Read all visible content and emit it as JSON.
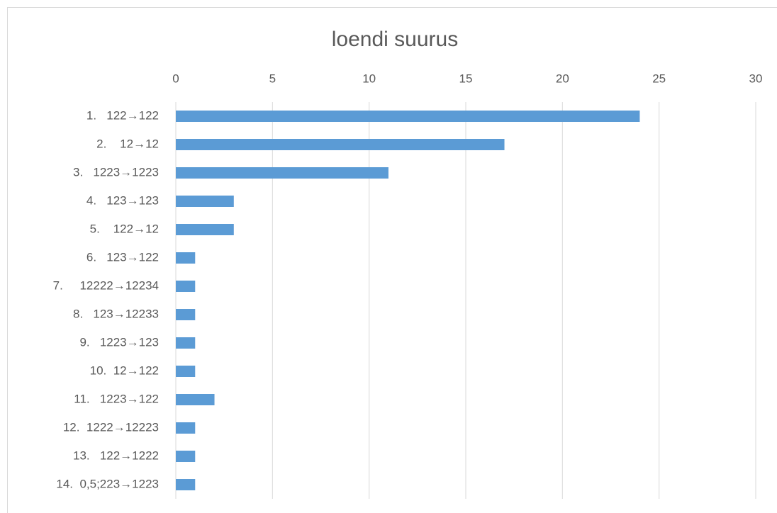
{
  "chart_data": {
    "type": "bar",
    "orientation": "horizontal",
    "title": "loendi suurus",
    "categories": [
      "1.   122→122",
      "2.    12→12",
      "3.   1223→1223",
      "4.   123→123",
      "5.    122→12",
      "6.   123→122",
      "7.     12222→12234",
      "8.   123→12233",
      "9.   1223→123",
      "10.  12→122",
      "11.   1223→122",
      "12.  1222→12223",
      "13.   122→1222",
      "14.  0,5;223→1223"
    ],
    "values": [
      24,
      17,
      11,
      3,
      3,
      1,
      1,
      1,
      1,
      1,
      2,
      1,
      1,
      1
    ],
    "color": "#5b9bd5",
    "xlim": [
      0,
      30
    ],
    "xticks": [
      0,
      5,
      10,
      15,
      20,
      25,
      30
    ],
    "grid": true
  }
}
